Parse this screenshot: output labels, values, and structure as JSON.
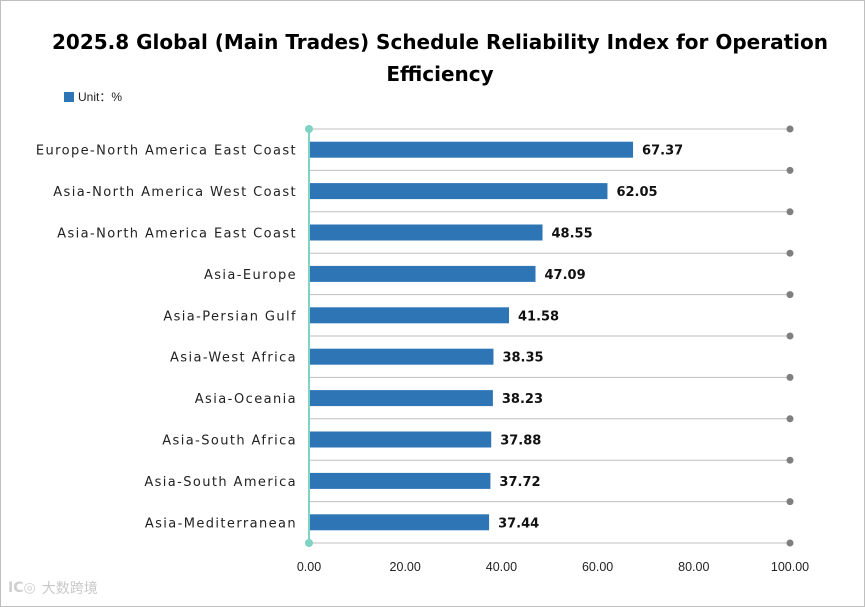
{
  "chart_data": {
    "type": "bar",
    "orientation": "horizontal",
    "title": "2025.8 Global (Main Trades) Schedule Reliability Index for Operation Efficiency",
    "legend_label": "Unit：%",
    "categories": [
      "Europe-North America East Coast",
      "Asia-North America West Coast",
      "Asia-North America East Coast",
      "Asia-Europe",
      "Asia-Persian Gulf",
      "Asia-West Africa",
      "Asia-Oceania",
      "Asia-South Africa",
      "Asia-South America",
      "Asia-Mediterranean"
    ],
    "values": [
      67.37,
      62.05,
      48.55,
      47.09,
      41.58,
      38.35,
      38.23,
      37.88,
      37.72,
      37.44
    ],
    "value_labels": [
      "67.37",
      "62.05",
      "48.55",
      "47.09",
      "41.58",
      "38.35",
      "38.23",
      "37.88",
      "37.72",
      "37.44"
    ],
    "xlim": [
      0,
      100
    ],
    "x_ticks": [
      "0.00",
      "20.00",
      "40.00",
      "60.00",
      "80.00",
      "100.00"
    ],
    "bar_color": "#2e75b6",
    "axis_color": "#7fd3c4",
    "grid": true
  },
  "watermark": {
    "logo": "IC◎",
    "text": "大数跨境"
  }
}
